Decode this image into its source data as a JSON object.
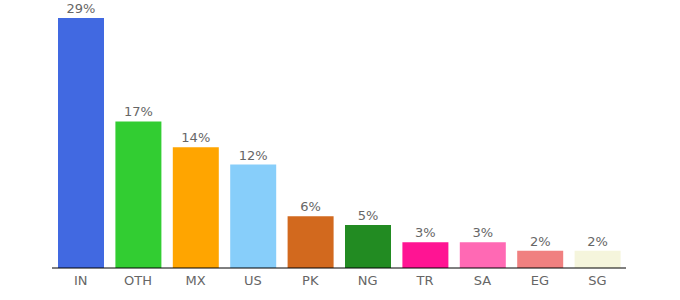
{
  "chart_data": {
    "type": "bar",
    "categories": [
      "IN",
      "OTH",
      "MX",
      "US",
      "PK",
      "NG",
      "TR",
      "SA",
      "EG",
      "SG"
    ],
    "values": [
      29,
      17,
      14,
      12,
      6,
      5,
      3,
      3,
      2,
      2
    ],
    "value_labels": [
      "29%",
      "17%",
      "14%",
      "12%",
      "6%",
      "5%",
      "3%",
      "3%",
      "2%",
      "2%"
    ],
    "colors": [
      "#4169e1",
      "#32cd32",
      "#ffa500",
      "#87cefa",
      "#d2691e",
      "#228b22",
      "#ff1493",
      "#ff69b4",
      "#f08080",
      "#f5f5dc"
    ],
    "ylim": [
      0,
      29
    ],
    "data_labels": true,
    "tick_labels": "x"
  }
}
